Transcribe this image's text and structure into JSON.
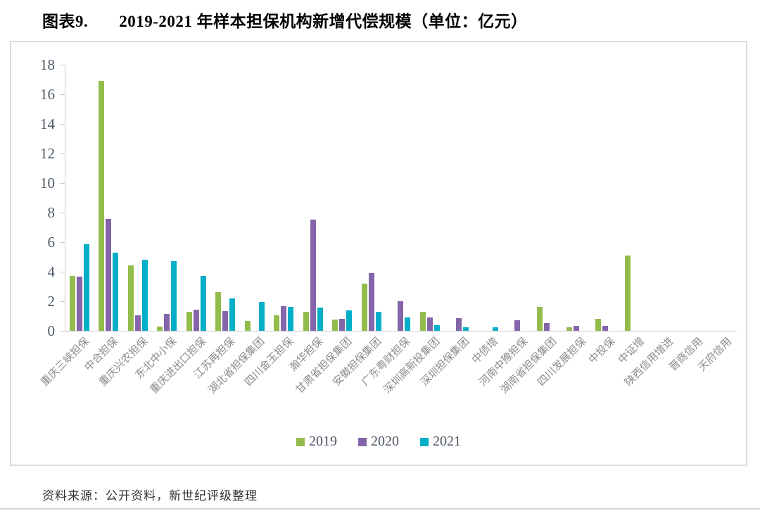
{
  "header": {
    "figure_label": "图表9.",
    "figure_title": "2019-2021 年样本担保机构新增代偿规模（单位：亿元）"
  },
  "footer": {
    "source_note": "资料来源：公开资料，新世纪评级整理"
  },
  "colors": {
    "series_2019": "#92BD4C",
    "series_2020": "#8465A9",
    "series_2021": "#00AEC8",
    "axis_line": "#cfcfcf",
    "y_tick_label": "#4c5866",
    "x_category_label": "#8c8c8c",
    "frame_border": "#dcdcdc"
  },
  "chart_data": {
    "type": "bar",
    "title": "2019-2021 年样本担保机构新增代偿规模",
    "unit_label": "单位：亿元",
    "xlabel": "",
    "ylabel": "",
    "ylim": [
      0,
      18
    ],
    "yticks": [
      0,
      2,
      4,
      6,
      8,
      10,
      12,
      14,
      16,
      18
    ],
    "grid": false,
    "legend_position": "bottom",
    "categories": [
      "重庆三峡担保",
      "中合担保",
      "重庆兴农担保",
      "东北中小保",
      "重庆进出口担保",
      "江苏再担保",
      "湖北省担保集团",
      "四川金玉担保",
      "瀚华担保",
      "甘肃省担保集团",
      "安徽担保集团",
      "广东粤财担保",
      "深圳高新投集团",
      "深圳担保集团",
      "中债增",
      "河南中豫担保",
      "湖南省担保集团",
      "四川发展担保",
      "中投保",
      "中证增",
      "陕西信用增进",
      "晋商信用",
      "天府信用"
    ],
    "series": [
      {
        "name": "2019",
        "color": "#92BD4C",
        "values": [
          3.7,
          16.9,
          4.45,
          0.3,
          1.3,
          2.6,
          0.65,
          1.05,
          1.3,
          0.75,
          3.2,
          0,
          1.3,
          0,
          0,
          0,
          1.6,
          0.25,
          0.8,
          5.1,
          0,
          0,
          0
        ]
      },
      {
        "name": "2020",
        "color": "#8465A9",
        "values": [
          3.65,
          7.55,
          1.05,
          1.15,
          1.45,
          1.35,
          0,
          1.65,
          7.5,
          0.8,
          3.9,
          2.0,
          0.9,
          0.85,
          0,
          0.7,
          0.5,
          0.35,
          0.35,
          0,
          0,
          0,
          0
        ]
      },
      {
        "name": "2021",
        "color": "#00AEC8",
        "values": [
          5.85,
          5.3,
          4.8,
          4.7,
          3.7,
          2.2,
          1.95,
          1.6,
          1.55,
          1.4,
          1.3,
          0.9,
          0.4,
          0.25,
          0.25,
          0,
          0,
          0,
          0,
          0,
          0,
          0,
          0
        ]
      }
    ]
  }
}
